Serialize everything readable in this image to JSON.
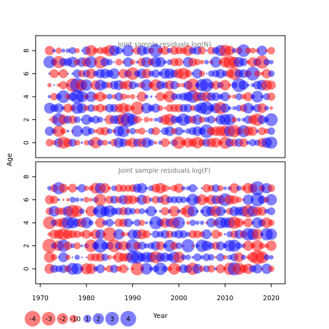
{
  "chart_data": {
    "type": "scatter",
    "ylabel": "Age",
    "xlabel": "Year",
    "x_ticks": [
      1970,
      1980,
      1990,
      2000,
      2010,
      2020
    ],
    "y_ticks": [
      0,
      2,
      4,
      6,
      8
    ],
    "colors": {
      "positive": "#0000ff",
      "negative": "#ff0000"
    },
    "legend": {
      "position": "bottom-left",
      "labels": [
        "-4",
        "-3",
        "-2",
        "-1",
        "0",
        "1",
        "2",
        "3",
        "4"
      ],
      "values": [
        -4,
        -3,
        -2,
        -1,
        0,
        1,
        2,
        3,
        4
      ]
    },
    "panels": [
      {
        "title": "Joint sample residuals log(N)",
        "xlim": [
          1969,
          2023
        ],
        "ylim": [
          -1.3,
          9.3
        ],
        "years": [
          1972,
          2020
        ],
        "ages": [
          0,
          8
        ],
        "seed": 11
      },
      {
        "title": "Joint sample residuals log(F)",
        "xlim": [
          1969,
          2023
        ],
        "ylim": [
          -1.3,
          9.3
        ],
        "years": [
          1972,
          2020
        ],
        "ages": [
          0,
          7
        ],
        "seed": 29
      }
    ]
  }
}
